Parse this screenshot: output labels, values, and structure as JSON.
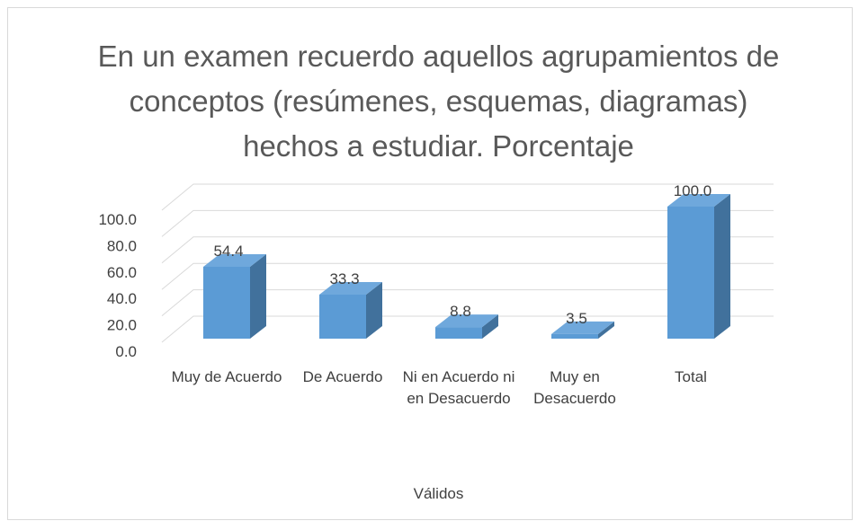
{
  "chart_data": {
    "type": "bar3d",
    "title": "En un examen recuerdo aquellos agrupamientos de conceptos (resúmenes, esquemas, diagramas) hechos a estudiar. Porcentaje",
    "categories": [
      "Muy de Acuerdo",
      "De Acuerdo",
      "Ni en Acuerdo ni en Desacuerdo",
      "Muy en Desacuerdo",
      "Total"
    ],
    "values": [
      54.4,
      33.3,
      8.8,
      3.5,
      100.0
    ],
    "value_labels": [
      "54.4",
      "33.3",
      "8.8",
      "3.5",
      "100.0"
    ],
    "color": "#5b9bd5",
    "xlabel": "Válidos",
    "ylim": [
      0,
      100
    ],
    "yticks": [
      {
        "value": 0,
        "label": "0.0"
      },
      {
        "value": 20,
        "label": "20.0"
      },
      {
        "value": 40,
        "label": "40.0"
      },
      {
        "value": 60,
        "label": "60.0"
      },
      {
        "value": 80,
        "label": "80.0"
      },
      {
        "value": 100,
        "label": "100.0"
      }
    ],
    "grid": true
  }
}
